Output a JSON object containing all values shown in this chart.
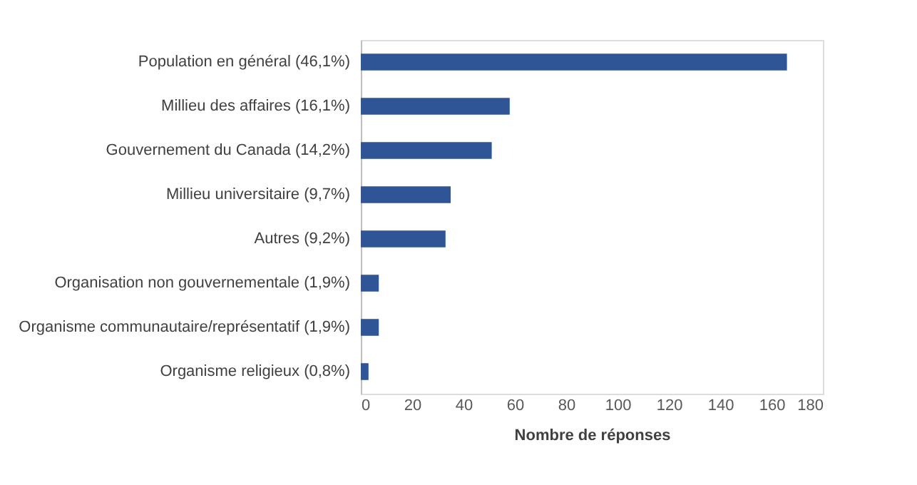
{
  "chart_data": {
    "type": "bar",
    "orientation": "horizontal",
    "xlabel": "Nombre de réponses",
    "categories": [
      "Population en général (46,1%)",
      "Millieu des affaires (16,1%)",
      "Gouvernement du Canada (14,2%)",
      "Millieu universitaire (9,7%)",
      "Autres (9,2%)",
      "Organisation non gouvernementale (1,9%)",
      "Organisme communautaire/représentatif (1,9%)",
      "Organisme religieux (0,8%)"
    ],
    "values": [
      166,
      58,
      51,
      35,
      33,
      7,
      7,
      3
    ],
    "color": "#2f5597",
    "xlim": [
      0,
      180
    ],
    "xticks": [
      0,
      20,
      40,
      60,
      80,
      100,
      120,
      140,
      160,
      180
    ],
    "grid": false
  }
}
